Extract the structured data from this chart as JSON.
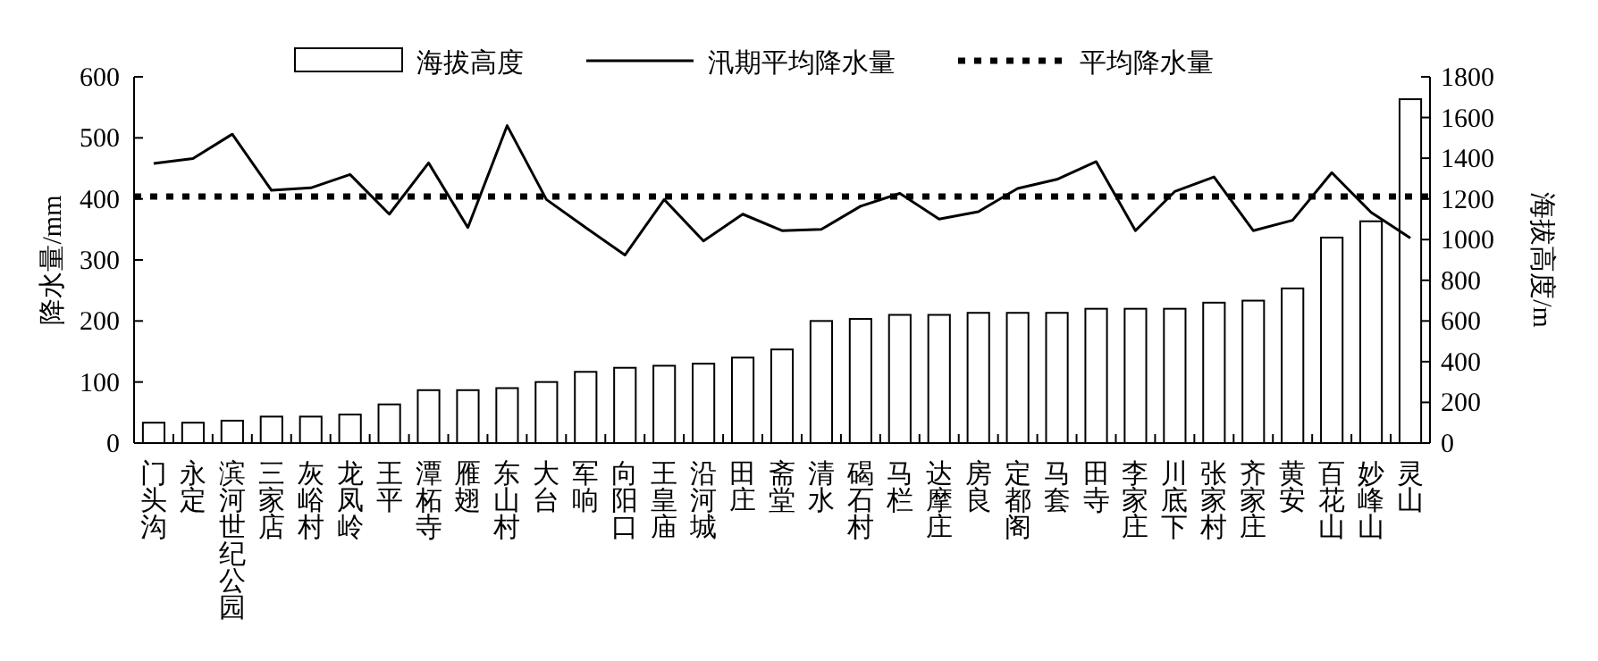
{
  "chart_data": {
    "type": "bar",
    "ylabel": "降水量/mm",
    "y2label": "海拔高度/m",
    "categories": [
      "门头沟",
      "永定",
      "滨河世纪公园",
      "三家店",
      "灰峪村",
      "龙凤岭",
      "王平",
      "潭柘寺",
      "雁翅",
      "东山村",
      "大台",
      "军响",
      "向阳口",
      "王皇庙",
      "沿河城",
      "田庄",
      "斋堂",
      "清水",
      "碣石村",
      "马栏",
      "达摩庄",
      "房良",
      "定都阁",
      "马套",
      "田寺",
      "李家庄",
      "川底下",
      "张家村",
      "齐家庄",
      "黄安",
      "百花山",
      "妙峰山",
      "灵山"
    ],
    "series": [
      {
        "name": "海拔高度",
        "axis": "y2",
        "color": "#ffffff",
        "values": [
          100,
          100,
          110,
          130,
          130,
          140,
          190,
          260,
          260,
          270,
          300,
          350,
          370,
          380,
          390,
          420,
          460,
          600,
          610,
          630,
          630,
          640,
          640,
          640,
          660,
          660,
          660,
          690,
          700,
          760,
          1010,
          1090,
          1690
        ]
      },
      {
        "name": "汛期平均降水量",
        "type": "line",
        "color": "#000000",
        "values": [
          458,
          466,
          506,
          414,
          418,
          440,
          375,
          459,
          353,
          520,
          399,
          353,
          308,
          399,
          331,
          375,
          348,
          350,
          388,
          409,
          367,
          379,
          417,
          432,
          461,
          348,
          412,
          436,
          348,
          365,
          443,
          378,
          336
        ]
      }
    ],
    "ref_lines": [
      {
        "axis": "y",
        "value": 404,
        "label": "平均降水量",
        "color": "#000000",
        "line_style": "dotted"
      }
    ],
    "ylim": [
      0,
      600
    ],
    "yticks": [
      0,
      100,
      200,
      300,
      400,
      500,
      600
    ],
    "y2lim": [
      0,
      1800
    ],
    "y2ticks": [
      0,
      200,
      400,
      600,
      800,
      1000,
      1200,
      1400,
      1600,
      1800
    ],
    "grid": false,
    "legend": "top",
    "marker": "none",
    "line_style": "solid"
  }
}
